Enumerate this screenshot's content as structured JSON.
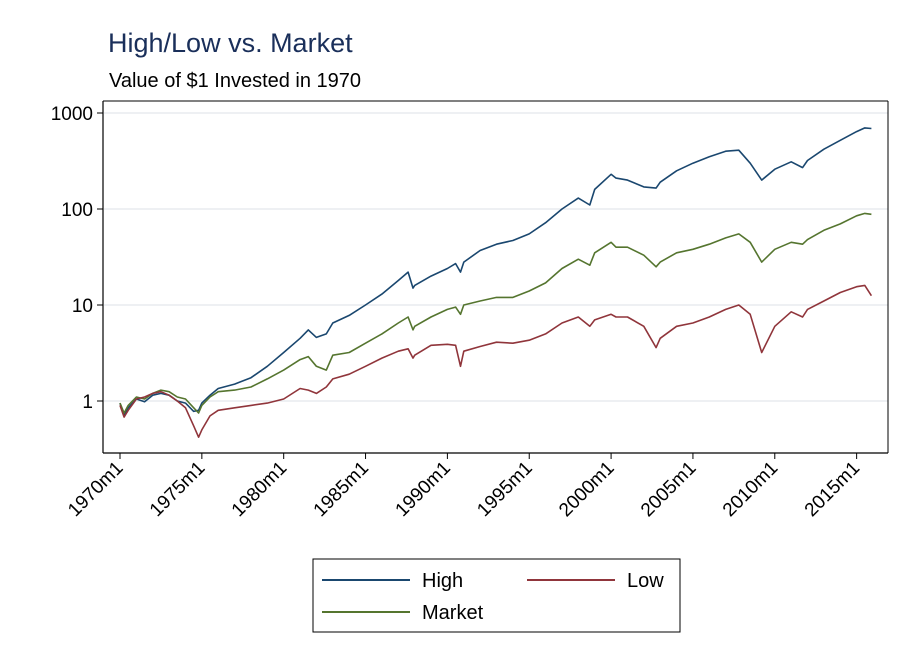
{
  "chart_data": {
    "type": "line",
    "title": "High/Low vs. Market",
    "subtitle": "Value of $1 Invested in 1970",
    "xlabel": "",
    "ylabel": "",
    "y_scale": "log",
    "ylim": [
      0.3,
      1100
    ],
    "xlim": [
      1970.0,
      2016.0
    ],
    "yticks": [
      1,
      10,
      100,
      1000
    ],
    "ytick_labels": [
      "1",
      "10",
      "100",
      "1000"
    ],
    "xticks": [
      1970,
      1975,
      1980,
      1985,
      1990,
      1995,
      2000,
      2005,
      2010,
      2015
    ],
    "xtick_labels": [
      "1970m1",
      "1975m1",
      "1980m1",
      "1985m1",
      "1990m1",
      "1995m1",
      "2000m1",
      "2005m1",
      "2010m1",
      "2015m1"
    ],
    "grid": true,
    "legend_position": "bottom",
    "x": [
      1970.0,
      1970.25,
      1970.5,
      1971.0,
      1971.5,
      1972.0,
      1972.5,
      1973.0,
      1973.5,
      1974.0,
      1974.5,
      1974.8,
      1975.0,
      1975.5,
      1976.0,
      1977.0,
      1978.0,
      1979.0,
      1980.0,
      1981.0,
      1981.5,
      1982.0,
      1982.6,
      1983.0,
      1984.0,
      1985.0,
      1986.0,
      1987.0,
      1987.6,
      1987.9,
      1988.0,
      1989.0,
      1990.0,
      1990.5,
      1990.8,
      1991.0,
      1992.0,
      1993.0,
      1994.0,
      1995.0,
      1996.0,
      1997.0,
      1998.0,
      1998.7,
      1999.0,
      2000.0,
      2000.3,
      2001.0,
      2002.0,
      2002.75,
      2003.0,
      2004.0,
      2005.0,
      2006.0,
      2007.0,
      2007.8,
      2008.5,
      2009.2,
      2010.0,
      2011.0,
      2011.7,
      2012.0,
      2013.0,
      2014.0,
      2015.0,
      2015.5,
      2015.9
    ],
    "series": [
      {
        "name": "High",
        "color": "#1a476f",
        "values": [
          0.95,
          0.72,
          0.85,
          1.05,
          0.98,
          1.15,
          1.2,
          1.15,
          1.0,
          0.95,
          0.78,
          0.8,
          0.95,
          1.15,
          1.35,
          1.5,
          1.75,
          2.3,
          3.2,
          4.5,
          5.5,
          4.6,
          5.0,
          6.5,
          7.8,
          10.0,
          13.0,
          18.0,
          22.0,
          15.0,
          16.0,
          20.0,
          24.0,
          27.0,
          22.0,
          28.0,
          37.0,
          43.0,
          47.0,
          55.0,
          72.0,
          100.0,
          130.0,
          110.0,
          160.0,
          230.0,
          210.0,
          200.0,
          170.0,
          165.0,
          190.0,
          250.0,
          300.0,
          350.0,
          400.0,
          410.0,
          300.0,
          200.0,
          260.0,
          310.0,
          270.0,
          320.0,
          420.0,
          520.0,
          640.0,
          700.0,
          690.0
        ]
      },
      {
        "name": "Market",
        "color": "#55752f",
        "values": [
          0.95,
          0.75,
          0.9,
          1.1,
          1.05,
          1.2,
          1.3,
          1.25,
          1.1,
          1.05,
          0.85,
          0.75,
          0.9,
          1.1,
          1.25,
          1.3,
          1.4,
          1.7,
          2.1,
          2.7,
          2.9,
          2.3,
          2.1,
          3.0,
          3.2,
          4.0,
          5.0,
          6.5,
          7.5,
          5.5,
          6.0,
          7.5,
          9.0,
          9.5,
          8.0,
          10.0,
          11.0,
          12.0,
          12.0,
          14.0,
          17.0,
          24.0,
          30.0,
          26.0,
          35.0,
          45.0,
          40.0,
          40.0,
          33.0,
          25.0,
          28.0,
          35.0,
          38.0,
          43.0,
          50.0,
          55.0,
          45.0,
          28.0,
          38.0,
          45.0,
          43.0,
          48.0,
          60.0,
          70.0,
          85.0,
          90.0,
          88.0
        ]
      },
      {
        "name": "Low",
        "color": "#90353b",
        "values": [
          0.9,
          0.68,
          0.8,
          1.05,
          1.1,
          1.2,
          1.25,
          1.15,
          1.0,
          0.85,
          0.55,
          0.42,
          0.5,
          0.7,
          0.8,
          0.85,
          0.9,
          0.95,
          1.05,
          1.35,
          1.3,
          1.2,
          1.4,
          1.7,
          1.9,
          2.3,
          2.8,
          3.3,
          3.5,
          2.8,
          3.0,
          3.8,
          3.9,
          3.8,
          2.3,
          3.3,
          3.7,
          4.1,
          4.0,
          4.3,
          5.0,
          6.5,
          7.5,
          6.0,
          7.0,
          8.0,
          7.5,
          7.5,
          6.0,
          3.6,
          4.5,
          6.0,
          6.5,
          7.5,
          9.0,
          10.0,
          8.0,
          3.2,
          6.0,
          8.5,
          7.5,
          9.0,
          11.0,
          13.5,
          15.5,
          16.0,
          12.5
        ]
      }
    ]
  }
}
